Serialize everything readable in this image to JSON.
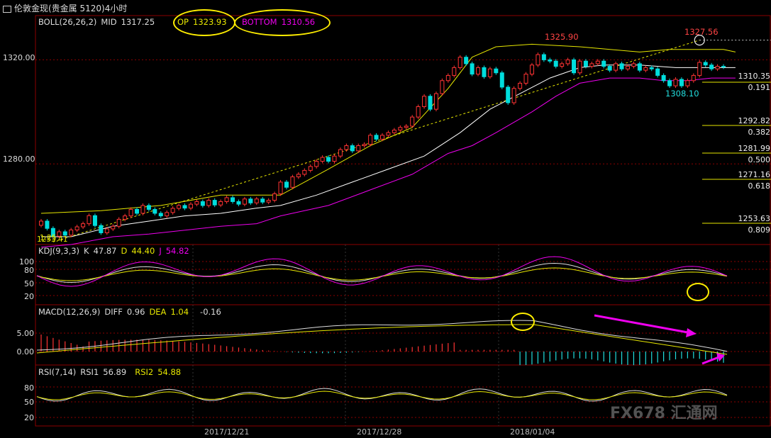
{
  "window_title": "伦敦金现(贵金属 5120)4小时",
  "icons": {
    "title": "window-icon"
  },
  "colors": {
    "background": "#000000",
    "up": "#ff3333",
    "down": "#00dddd",
    "mid": "#ffffff",
    "upper": "#e6e600",
    "lower": "#ee00ee",
    "grid": "#8b0000",
    "fib": "#e6e600"
  },
  "boll": {
    "label": "BOLL(26,26,2)",
    "mid_label": "MID",
    "mid_value": "1317.25",
    "top_label": "OP",
    "top_value": "1323.93",
    "bottom_label": "BOTTOM",
    "bottom_value": "1310.56"
  },
  "kdj": {
    "label": "KDJ(9,3,3)",
    "k_label": "K",
    "k_value": "47.87",
    "d_label": "D",
    "d_value": "44.40",
    "j_label": "J",
    "j_value": "54.82",
    "y_ticks": [
      "100",
      "80",
      "50",
      "20"
    ]
  },
  "macd": {
    "label": "MACD(12,26,9)",
    "diff_label": "DIFF",
    "diff_value": "0.96",
    "dea_label": "DEA",
    "dea_value": "1.04",
    "macd_value": "-0.16",
    "y_ticks": [
      "5.00",
      "0.00"
    ]
  },
  "rsi": {
    "label": "RSI(7,14)",
    "rsi1_label": "RSI1",
    "rsi1_value": "56.89",
    "rsi2_label": "RSI2",
    "rsi2_value": "54.88",
    "y_ticks": [
      "80",
      "50",
      "20"
    ]
  },
  "price_axis": {
    "ticks": [
      "1320.00",
      "1280.00"
    ]
  },
  "dates": [
    "2017/12/21",
    "2017/12/28",
    "2018/01/04"
  ],
  "annotations": {
    "high_1": "1325.90",
    "high_2": "1327.56",
    "low_1": "1308.10",
    "start_low": "1253.41",
    "start_tag": "1.25"
  },
  "fib_levels": [
    {
      "price": "1310.35",
      "ratio": "0.191"
    },
    {
      "price": "1292.82",
      "ratio": "0.382"
    },
    {
      "price": "1281.99",
      "ratio": "0.500"
    },
    {
      "price": "1271.16",
      "ratio": "0.618"
    },
    {
      "price": "1253.63",
      "ratio": "0.809"
    }
  ],
  "watermark": "FX678 汇通网",
  "chart_data": {
    "type": "candlestick",
    "ylim": [
      1249,
      1337
    ],
    "x_ticks": [
      "2017/12/21",
      "2017/12/28",
      "2018/01/04"
    ],
    "candles": [
      {
        "o": 1256.4,
        "c": 1258.0
      },
      {
        "o": 1258.0,
        "c": 1255.2
      },
      {
        "o": 1255.2,
        "c": 1252.2
      },
      {
        "o": 1252.2,
        "c": 1253.9
      },
      {
        "o": 1253.9,
        "c": 1252.6
      },
      {
        "o": 1252.6,
        "c": 1254.6
      },
      {
        "o": 1254.6,
        "c": 1255.8
      },
      {
        "o": 1255.8,
        "c": 1257.0
      },
      {
        "o": 1257.0,
        "c": 1260.1
      },
      {
        "o": 1260.1,
        "c": 1256.3
      },
      {
        "o": 1256.3,
        "c": 1253.5
      },
      {
        "o": 1253.5,
        "c": 1255.0
      },
      {
        "o": 1255.0,
        "c": 1256.0
      },
      {
        "o": 1256.0,
        "c": 1258.7
      },
      {
        "o": 1258.7,
        "c": 1260.0
      },
      {
        "o": 1260.0,
        "c": 1262.5
      },
      {
        "o": 1262.5,
        "c": 1261.0
      },
      {
        "o": 1261.0,
        "c": 1264.0
      },
      {
        "o": 1264.0,
        "c": 1262.5
      },
      {
        "o": 1262.5,
        "c": 1261.0
      },
      {
        "o": 1261.0,
        "c": 1260.0
      },
      {
        "o": 1260.0,
        "c": 1261.3
      },
      {
        "o": 1261.3,
        "c": 1262.9
      },
      {
        "o": 1262.9,
        "c": 1264.0
      },
      {
        "o": 1264.0,
        "c": 1263.0
      },
      {
        "o": 1263.0,
        "c": 1264.5
      },
      {
        "o": 1264.5,
        "c": 1265.5
      },
      {
        "o": 1265.5,
        "c": 1264.0
      },
      {
        "o": 1264.0,
        "c": 1266.0
      },
      {
        "o": 1266.0,
        "c": 1264.2
      },
      {
        "o": 1264.2,
        "c": 1265.5
      },
      {
        "o": 1265.5,
        "c": 1267.0
      },
      {
        "o": 1267.0,
        "c": 1265.5
      },
      {
        "o": 1265.5,
        "c": 1264.5
      },
      {
        "o": 1264.5,
        "c": 1266.5
      },
      {
        "o": 1266.5,
        "c": 1265.0
      },
      {
        "o": 1265.0,
        "c": 1266.5
      },
      {
        "o": 1266.5,
        "c": 1265.3
      },
      {
        "o": 1265.3,
        "c": 1266.0
      },
      {
        "o": 1266.0,
        "c": 1268.5
      },
      {
        "o": 1268.5,
        "c": 1273.0
      },
      {
        "o": 1273.0,
        "c": 1271.0
      },
      {
        "o": 1271.0,
        "c": 1275.0
      },
      {
        "o": 1275.0,
        "c": 1276.0
      },
      {
        "o": 1276.0,
        "c": 1277.5
      },
      {
        "o": 1277.5,
        "c": 1279.0
      },
      {
        "o": 1279.0,
        "c": 1281.0
      },
      {
        "o": 1281.0,
        "c": 1282.5
      },
      {
        "o": 1282.5,
        "c": 1281.0
      },
      {
        "o": 1281.0,
        "c": 1283.0
      },
      {
        "o": 1283.0,
        "c": 1285.5
      },
      {
        "o": 1285.5,
        "c": 1287.0
      },
      {
        "o": 1287.0,
        "c": 1285.0
      },
      {
        "o": 1285.0,
        "c": 1287.0
      },
      {
        "o": 1287.0,
        "c": 1287.5
      },
      {
        "o": 1287.5,
        "c": 1291.0
      },
      {
        "o": 1291.0,
        "c": 1289.5
      },
      {
        "o": 1289.5,
        "c": 1291.0
      },
      {
        "o": 1291.0,
        "c": 1292.0
      },
      {
        "o": 1292.0,
        "c": 1293.0
      },
      {
        "o": 1293.0,
        "c": 1294.0
      },
      {
        "o": 1294.0,
        "c": 1294.5
      },
      {
        "o": 1294.5,
        "c": 1298.0
      },
      {
        "o": 1298.0,
        "c": 1302.0
      },
      {
        "o": 1302.0,
        "c": 1306.0
      },
      {
        "o": 1306.0,
        "c": 1301.0
      },
      {
        "o": 1301.0,
        "c": 1307.0
      },
      {
        "o": 1307.0,
        "c": 1312.0
      },
      {
        "o": 1312.0,
        "c": 1314.0
      },
      {
        "o": 1314.0,
        "c": 1317.0
      },
      {
        "o": 1317.0,
        "c": 1321.0
      },
      {
        "o": 1321.0,
        "c": 1318.5
      },
      {
        "o": 1318.5,
        "c": 1314.5
      },
      {
        "o": 1314.5,
        "c": 1317.0
      },
      {
        "o": 1317.0,
        "c": 1313.5
      },
      {
        "o": 1313.5,
        "c": 1316.5
      },
      {
        "o": 1316.5,
        "c": 1315.0
      },
      {
        "o": 1315.0,
        "c": 1309.5
      },
      {
        "o": 1309.5,
        "c": 1303.5
      },
      {
        "o": 1303.5,
        "c": 1309.0
      },
      {
        "o": 1309.0,
        "c": 1311.0
      },
      {
        "o": 1311.0,
        "c": 1314.5
      },
      {
        "o": 1314.5,
        "c": 1318.0
      },
      {
        "o": 1318.0,
        "c": 1322.0
      },
      {
        "o": 1322.0,
        "c": 1320.0
      },
      {
        "o": 1320.0,
        "c": 1319.5
      },
      {
        "o": 1319.5,
        "c": 1317.5
      },
      {
        "o": 1317.5,
        "c": 1318.5
      },
      {
        "o": 1318.5,
        "c": 1320.0
      },
      {
        "o": 1320.0,
        "c": 1315.0
      },
      {
        "o": 1315.0,
        "c": 1319.5
      },
      {
        "o": 1319.5,
        "c": 1317.5
      },
      {
        "o": 1317.5,
        "c": 1318.5
      },
      {
        "o": 1318.5,
        "c": 1319.5
      },
      {
        "o": 1319.5,
        "c": 1317.5
      },
      {
        "o": 1317.5,
        "c": 1316.0
      },
      {
        "o": 1316.0,
        "c": 1318.5
      },
      {
        "o": 1318.5,
        "c": 1316.5
      },
      {
        "o": 1316.5,
        "c": 1317.5
      },
      {
        "o": 1317.5,
        "c": 1318.5
      },
      {
        "o": 1318.5,
        "c": 1316.0
      },
      {
        "o": 1316.0,
        "c": 1317.0
      },
      {
        "o": 1317.0,
        "c": 1316.5
      },
      {
        "o": 1316.5,
        "c": 1314.0
      },
      {
        "o": 1314.0,
        "c": 1312.0
      },
      {
        "o": 1312.0,
        "c": 1310.0
      },
      {
        "o": 1310.0,
        "c": 1312.5
      },
      {
        "o": 1312.5,
        "c": 1310.0
      },
      {
        "o": 1310.0,
        "c": 1312.0
      },
      {
        "o": 1312.0,
        "c": 1314.0
      },
      {
        "o": 1314.0,
        "c": 1319.0
      },
      {
        "o": 1319.0,
        "c": 1318.0
      },
      {
        "o": 1318.0,
        "c": 1316.5
      },
      {
        "o": 1316.5,
        "c": 1317.5
      },
      {
        "o": 1317.5,
        "c": 1317.25
      }
    ],
    "boll_upper_points": [
      [
        0,
        1261
      ],
      [
        10,
        1262
      ],
      [
        20,
        1264
      ],
      [
        30,
        1268
      ],
      [
        40,
        1268
      ],
      [
        48,
        1278
      ],
      [
        55,
        1287
      ],
      [
        62,
        1294
      ],
      [
        68,
        1309
      ],
      [
        72,
        1321
      ],
      [
        76,
        1325
      ],
      [
        82,
        1326
      ],
      [
        90,
        1325
      ],
      [
        100,
        1323
      ],
      [
        105,
        1324
      ],
      [
        110,
        1324
      ],
      [
        114,
        1324
      ],
      [
        116,
        1323
      ]
    ],
    "boll_lower_points": [
      [
        0,
        1248
      ],
      [
        5,
        1249
      ],
      [
        12,
        1252
      ],
      [
        18,
        1253
      ],
      [
        22,
        1254
      ],
      [
        30,
        1256
      ],
      [
        36,
        1257
      ],
      [
        40,
        1260
      ],
      [
        48,
        1264
      ],
      [
        55,
        1270
      ],
      [
        62,
        1276
      ],
      [
        68,
        1284
      ],
      [
        72,
        1287
      ],
      [
        76,
        1292
      ],
      [
        82,
        1300
      ],
      [
        86,
        1306
      ],
      [
        90,
        1311
      ],
      [
        95,
        1313
      ],
      [
        100,
        1313
      ],
      [
        104,
        1312
      ],
      [
        108,
        1312
      ],
      [
        112,
        1313
      ],
      [
        116,
        1313
      ]
    ],
    "boll_mid_points": [
      [
        0,
        1252
      ],
      [
        5,
        1252
      ],
      [
        12,
        1256
      ],
      [
        18,
        1258
      ],
      [
        24,
        1260
      ],
      [
        30,
        1261
      ],
      [
        36,
        1263
      ],
      [
        40,
        1264
      ],
      [
        46,
        1268
      ],
      [
        52,
        1273
      ],
      [
        58,
        1278
      ],
      [
        64,
        1283
      ],
      [
        70,
        1292
      ],
      [
        75,
        1301
      ],
      [
        80,
        1307
      ],
      [
        85,
        1313
      ],
      [
        90,
        1317
      ],
      [
        94,
        1318
      ],
      [
        100,
        1318
      ],
      [
        106,
        1317
      ],
      [
        112,
        1317
      ],
      [
        116,
        1317
      ]
    ]
  }
}
